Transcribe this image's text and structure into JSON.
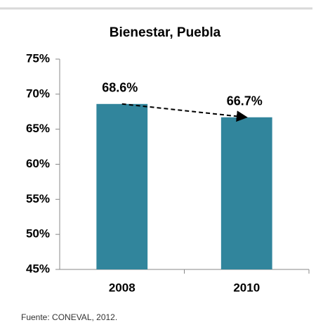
{
  "chart_data": {
    "type": "bar",
    "title": "Bienestar, Puebla",
    "categories": [
      "2008",
      "2010"
    ],
    "values": [
      68.6,
      66.7
    ],
    "value_labels": [
      "68.6%",
      "66.7%"
    ],
    "color": "#31859c",
    "ylim": [
      45,
      75
    ],
    "yticks": [
      {
        "value": 45,
        "label": "45%"
      },
      {
        "value": 50,
        "label": "50%"
      },
      {
        "value": 55,
        "label": "55%"
      },
      {
        "value": 60,
        "label": "60%"
      },
      {
        "value": 65,
        "label": "65%"
      },
      {
        "value": 70,
        "label": "70%"
      },
      {
        "value": 75,
        "label": "75%"
      }
    ],
    "grid": false,
    "source": "Fuente: CONEVAL, 2012."
  }
}
